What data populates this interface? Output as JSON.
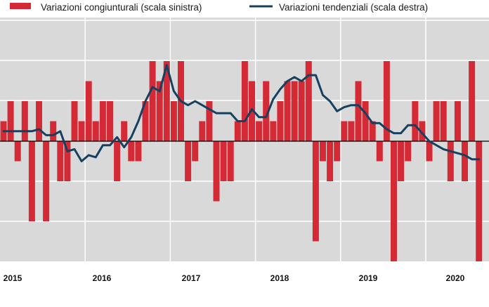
{
  "chart_data": {
    "type": "bar",
    "x_start": "2015-01",
    "legend": {
      "bars": "Variazioni congiunturali (scala sinistra)",
      "line": "Variazioni tendenziali (scala destra)",
      "placement": "top"
    },
    "year_labels": [
      "2015",
      "2016",
      "2017",
      "2018",
      "2019",
      "2020"
    ],
    "grid": true,
    "series": [
      {
        "name": "Variazioni congiunturali (scala sinistra)",
        "type": "bar",
        "axis": "left",
        "values": [
          0.5,
          1.0,
          -0.5,
          1.0,
          -2.0,
          1.0,
          -2.0,
          0.5,
          -1.0,
          -1.0,
          1.0,
          0.5,
          1.5,
          0.5,
          1.0,
          1.0,
          -1.0,
          0.5,
          -0.5,
          -0.5,
          1.0,
          2.0,
          1.5,
          2.0,
          1.0,
          2.0,
          -1.0,
          -0.5,
          0.5,
          1.0,
          -1.5,
          -1.0,
          -1.0,
          0.5,
          2.0,
          1.5,
          0.5,
          1.5,
          0.5,
          1.0,
          1.5,
          1.5,
          1.5,
          2.0,
          -2.5,
          -0.5,
          -1.0,
          -0.5,
          0.5,
          0.5,
          1.5,
          1.0,
          0.5,
          -0.5,
          2.0,
          -3.0,
          -1.0,
          -0.5,
          1.0,
          0.5,
          -0.5,
          1.0,
          1.0,
          -1.0,
          1.0,
          -1.0,
          2.0,
          -3.0
        ]
      },
      {
        "name": "Variazioni tendenziali (scala destra)",
        "type": "line",
        "axis": "right",
        "values": [
          0.5,
          0.5,
          0.5,
          0.5,
          0.5,
          0.6,
          0.3,
          0.3,
          0.5,
          -0.5,
          -0.4,
          -1.0,
          -0.7,
          -0.8,
          -0.2,
          -0.2,
          0.2,
          -0.3,
          0.2,
          1.0,
          2.0,
          2.7,
          2.5,
          3.8,
          2.5,
          2.0,
          1.8,
          2.0,
          1.8,
          1.6,
          1.4,
          1.4,
          1.4,
          1.0,
          1.0,
          1.6,
          1.2,
          1.2,
          2.1,
          2.6,
          3.0,
          3.2,
          3.0,
          3.3,
          3.3,
          2.3,
          2.0,
          1.5,
          1.7,
          1.8,
          1.8,
          1.4,
          0.9,
          0.9,
          0.6,
          0.4,
          0.4,
          0.8,
          0.8,
          0.4,
          0.0,
          -0.2,
          -0.4,
          -0.5,
          -0.6,
          -0.7,
          -0.9,
          -0.9
        ]
      }
    ]
  },
  "colors": {
    "bars": "#d42a35",
    "line": "#16405f",
    "background": "#d9d9d9",
    "grid": "#ffffff",
    "zero_line": "#000000"
  }
}
